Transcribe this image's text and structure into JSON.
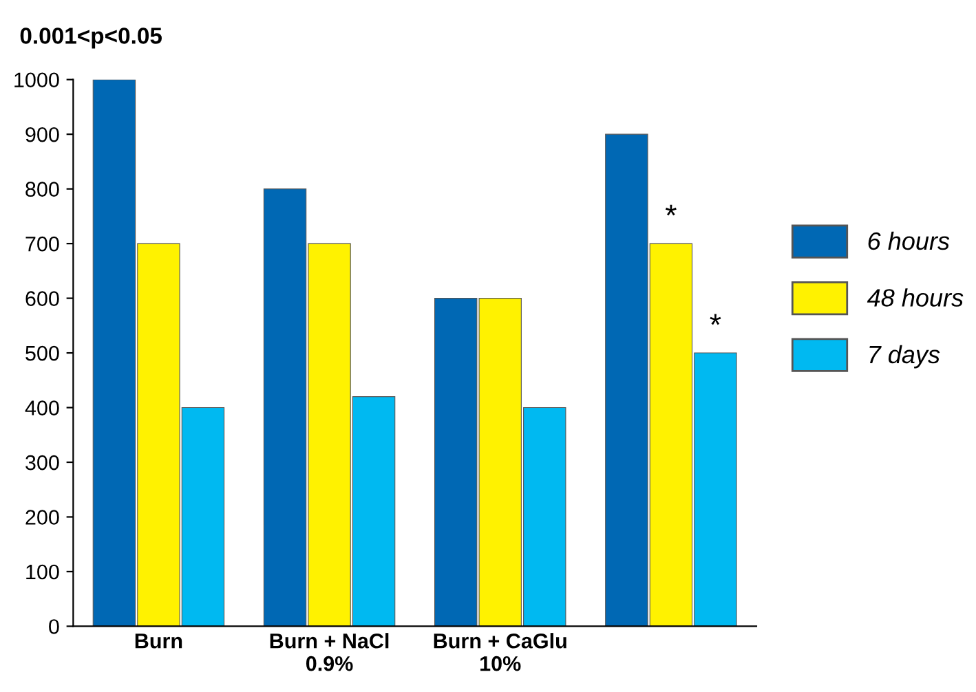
{
  "chart_data": {
    "type": "bar",
    "title": "0.001<p<0.05",
    "categories": [
      "Burn",
      "Burn + NaCl\n0.9%",
      "Burn + CaGlu\n10%",
      null
    ],
    "series": [
      {
        "name": "6 hours",
        "color": "#0068b4",
        "values": [
          1000,
          800,
          600,
          900
        ]
      },
      {
        "name": "48 hours",
        "color": "#fff200",
        "values": [
          700,
          700,
          600,
          700
        ]
      },
      {
        "name": "7 days",
        "color": "#00b9f1",
        "values": [
          400,
          420,
          400,
          500
        ]
      }
    ],
    "ylim": [
      0,
      1000
    ],
    "yticks": [
      0,
      100,
      200,
      300,
      400,
      500,
      600,
      700,
      800,
      900,
      1000
    ],
    "grid": false,
    "legend": "right",
    "annotations": [
      {
        "text": "*",
        "y": 700
      },
      {
        "text": "*",
        "y": 500
      }
    ]
  }
}
